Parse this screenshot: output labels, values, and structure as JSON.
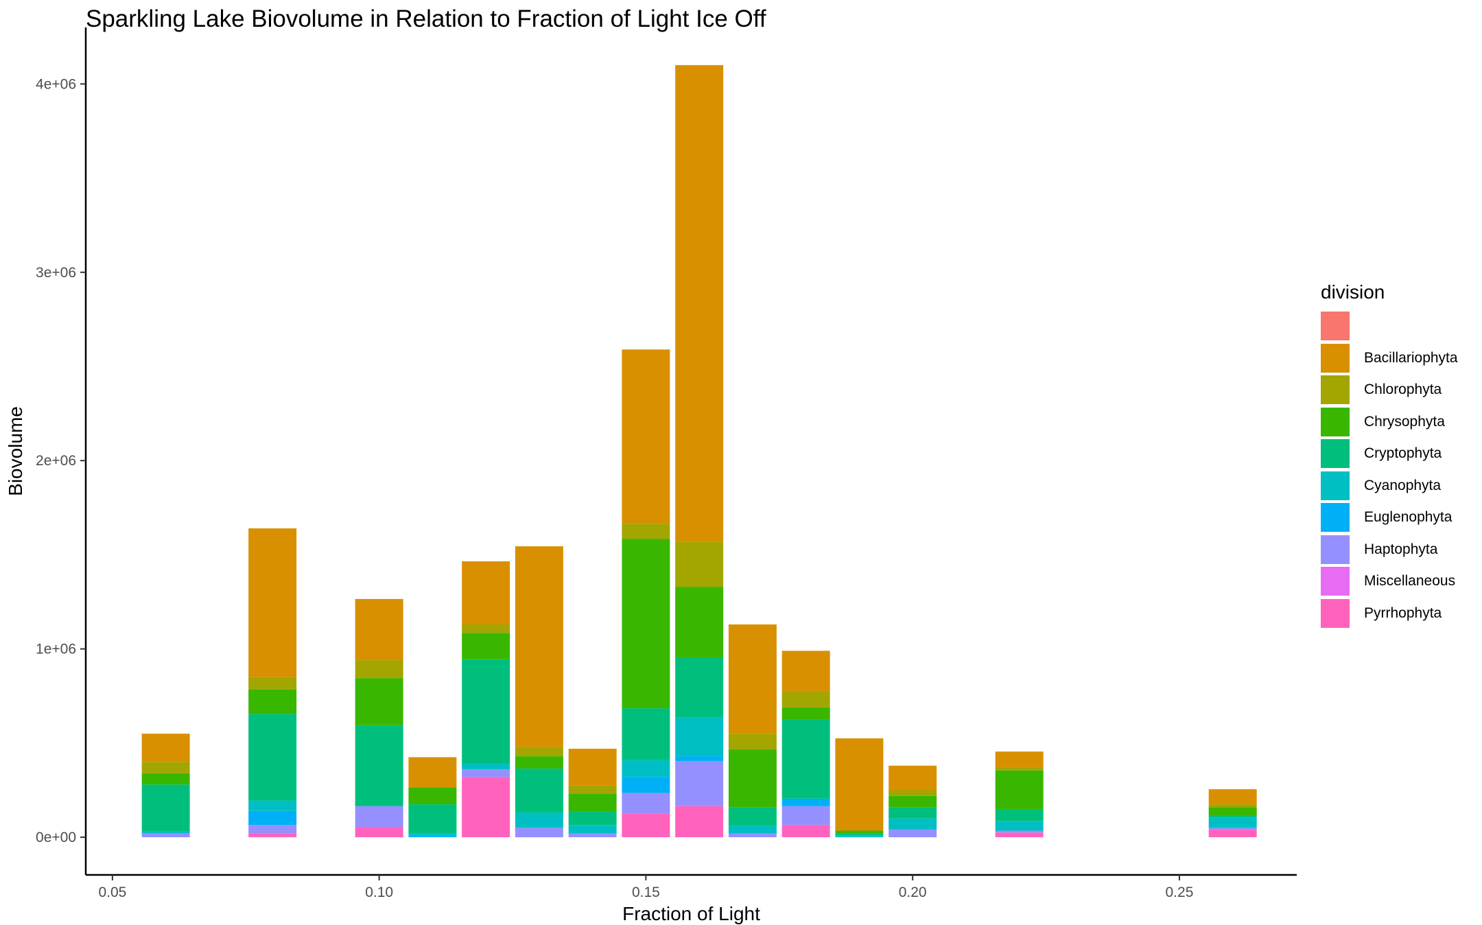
{
  "chart_data": {
    "type": "bar",
    "stacked": true,
    "title": "Sparkling Lake Biovolume in Relation to Fraction of Light Ice Off",
    "xlabel": "Fraction of Light",
    "ylabel": "Biovolume",
    "xlim": [
      0.045,
      0.272
    ],
    "ylim": [
      -200000,
      4300000
    ],
    "x_ticks": [
      0.05,
      0.1,
      0.15,
      0.2,
      0.25
    ],
    "x_tick_labels": [
      "0.05",
      "0.10",
      "0.15",
      "0.20",
      "0.25"
    ],
    "y_ticks": [
      0,
      1000000,
      2000000,
      3000000,
      4000000
    ],
    "y_tick_labels": [
      "0e+00",
      "1e+06",
      "2e+06",
      "3e+06",
      "4e+06"
    ],
    "bar_width": 0.009,
    "grid": false,
    "legend_position": "right",
    "legend_title": "division",
    "series": [
      {
        "name": "",
        "color": "#F8766D"
      },
      {
        "name": "Bacillariophyta",
        "color": "#D89000"
      },
      {
        "name": "Chlorophyta",
        "color": "#A3A500"
      },
      {
        "name": "Chrysophyta",
        "color": "#39B600"
      },
      {
        "name": "Cryptophyta",
        "color": "#00BF7D"
      },
      {
        "name": "Cyanophyta",
        "color": "#00BFC4"
      },
      {
        "name": "Euglenophyta",
        "color": "#00B0F6"
      },
      {
        "name": "Haptophyta",
        "color": "#9590FF"
      },
      {
        "name": "Miscellaneous",
        "color": "#E76BF3"
      },
      {
        "name": "Pyrrhophyta",
        "color": "#FF62BC"
      }
    ],
    "stack_order_bottom_to_top": [
      "Pyrrhophyta",
      "Miscellaneous",
      "Haptophyta",
      "Euglenophyta",
      "Cyanophyta",
      "Cryptophyta",
      "Chrysophyta",
      "Chlorophyta",
      "Bacillariophyta",
      ""
    ],
    "bars": [
      {
        "x": 0.06,
        "values": {
          "Pyrrhophyta": 0,
          "Haptophyta": 20000,
          "Cyanophyta": 10000,
          "Cryptophyta": 250000,
          "Chrysophyta": 60000,
          "Chlorophyta": 60000,
          "Bacillariophyta": 150000
        }
      },
      {
        "x": 0.08,
        "values": {
          "Pyrrhophyta": 20000,
          "Haptophyta": 45000,
          "Euglenophyta": 75000,
          "Cyanophyta": 55000,
          "Cryptophyta": 460000,
          "Chrysophyta": 130000,
          "Chlorophyta": 65000,
          "Bacillariophyta": 790000
        }
      },
      {
        "x": 0.1,
        "values": {
          "Pyrrhophyta": 55000,
          "Haptophyta": 110000,
          "Cryptophyta": 430000,
          "Chrysophyta": 250000,
          "Chlorophyta": 95000,
          "Bacillariophyta": 325000
        }
      },
      {
        "x": 0.11,
        "values": {
          "Euglenophyta": 10000,
          "Cyanophyta": 10000,
          "Cryptophyta": 155000,
          "Chrysophyta": 90000,
          "Bacillariophyta": 160000
        }
      },
      {
        "x": 0.12,
        "values": {
          "Pyrrhophyta": 320000,
          "Haptophyta": 40000,
          "Cyanophyta": 30000,
          "Cryptophyta": 555000,
          "Chrysophyta": 140000,
          "Chlorophyta": 45000,
          "Bacillariophyta": 335000
        }
      },
      {
        "x": 0.13,
        "values": {
          "Haptophyta": 50000,
          "Cyanophyta": 80000,
          "Cryptophyta": 235000,
          "Chrysophyta": 65000,
          "Chlorophyta": 50000,
          "Bacillariophyta": 1065000
        }
      },
      {
        "x": 0.14,
        "values": {
          "Haptophyta": 20000,
          "Cyanophyta": 45000,
          "Cryptophyta": 70000,
          "Chrysophyta": 95000,
          "Chlorophyta": 45000,
          "Bacillariophyta": 195000
        }
      },
      {
        "x": 0.15,
        "values": {
          "Pyrrhophyta": 125000,
          "Haptophyta": 110000,
          "Euglenophyta": 85000,
          "Cyanophyta": 90000,
          "Cryptophyta": 275000,
          "Chrysophyta": 900000,
          "Chlorophyta": 80000,
          "Bacillariophyta": 925000
        }
      },
      {
        "x": 0.16,
        "values": {
          "Pyrrhophyta": 165000,
          "Haptophyta": 240000,
          "Euglenophyta": 25000,
          "Cyanophyta": 205000,
          "Cryptophyta": 320000,
          "Chrysophyta": 375000,
          "Chlorophyta": 240000,
          "Bacillariophyta": 2530000
        }
      },
      {
        "x": 0.17,
        "values": {
          "Haptophyta": 20000,
          "Cyanophyta": 40000,
          "Cryptophyta": 100000,
          "Chrysophyta": 305000,
          "Chlorophyta": 85000,
          "Bacillariophyta": 580000
        }
      },
      {
        "x": 0.18,
        "values": {
          "Pyrrhophyta": 65000,
          "Haptophyta": 100000,
          "Euglenophyta": 40000,
          "Cryptophyta": 420000,
          "Chrysophyta": 65000,
          "Chlorophyta": 85000,
          "Bacillariophyta": 215000
        }
      },
      {
        "x": 0.19,
        "values": {
          "Cyanophyta": 10000,
          "Cryptophyta": 10000,
          "Chrysophyta": 15000,
          "Bacillariophyta": 490000
        }
      },
      {
        "x": 0.2,
        "values": {
          "Haptophyta": 40000,
          "Cyanophyta": 60000,
          "Cryptophyta": 60000,
          "Chrysophyta": 60000,
          "Chlorophyta": 30000,
          "Bacillariophyta": 130000
        }
      },
      {
        "x": 0.22,
        "values": {
          "Pyrrhophyta": 25000,
          "Haptophyta": 10000,
          "Cyanophyta": 50000,
          "Cryptophyta": 65000,
          "Chrysophyta": 205000,
          "Chlorophyta": 15000,
          "Bacillariophyta": 85000
        }
      },
      {
        "x": 0.26,
        "values": {
          "Pyrrhophyta": 40000,
          "Haptophyta": 10000,
          "Cyanophyta": 55000,
          "Cryptophyta": 10000,
          "Chrysophyta": 45000,
          "Chlorophyta": 15000,
          "Bacillariophyta": 80000
        }
      }
    ]
  }
}
